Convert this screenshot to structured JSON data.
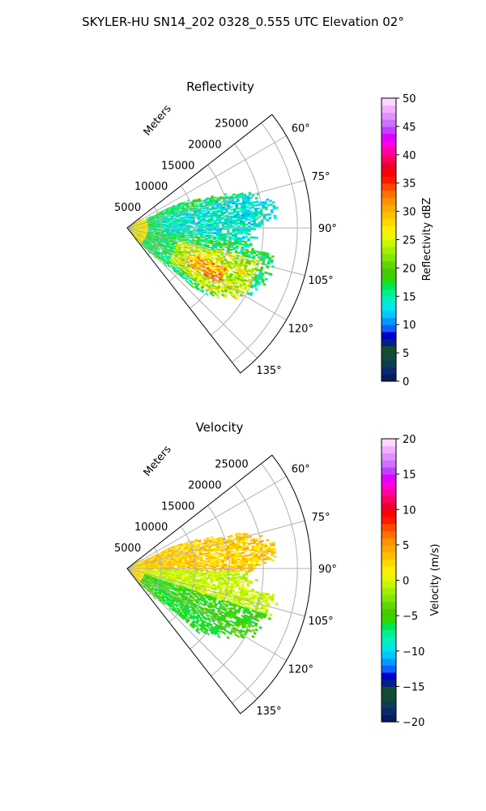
{
  "figure": {
    "title": "SKYLER-HU  SN14_202  0328_0.555 UTC Elevation 02°"
  },
  "chart_data": [
    {
      "type": "heatmap",
      "title": "Reflectivity",
      "radial_label": "Meters",
      "radial_ticks": [
        5000,
        10000,
        15000,
        20000,
        25000
      ],
      "radial_tick_labels": [
        "5000",
        "10000",
        "15000",
        "20000",
        "25000"
      ],
      "r_max": 27000,
      "theta_min_deg": 52,
      "theta_max_deg": 142,
      "theta_ticks": [
        60,
        75,
        90,
        105,
        120,
        135
      ],
      "theta_tick_labels": [
        "60°",
        "75°",
        "90°",
        "105°",
        "120°",
        "135°"
      ],
      "grid": true,
      "colorbar": {
        "label": "Reflectivity dBZ",
        "range": [
          0,
          50
        ],
        "ticks": [
          0,
          5,
          10,
          15,
          20,
          25,
          30,
          35,
          40,
          45,
          50
        ],
        "tick_labels": [
          "0",
          "5",
          "10",
          "15",
          "20",
          "25",
          "30",
          "35",
          "40",
          "45",
          "50"
        ],
        "colors": [
          "#0a1a5a",
          "#0b2a6e",
          "#0d3d55",
          "#0f4a3c",
          "#124f2c",
          "#0a1e8a",
          "#0000cc",
          "#1060ff",
          "#0099ff",
          "#00c8ff",
          "#00e6e6",
          "#00f0c0",
          "#00f090",
          "#00e650",
          "#30d800",
          "#4ac800",
          "#60d800",
          "#80e800",
          "#a0f000",
          "#c8f800",
          "#e8f800",
          "#ffee00",
          "#ffd800",
          "#ffc000",
          "#ffa800",
          "#ff9000",
          "#ff7000",
          "#ff4800",
          "#ff1800",
          "#ff0000",
          "#e80030",
          "#ff0060",
          "#ff00a0",
          "#ff00e0",
          "#e000ff",
          "#c040ff",
          "#d070ff",
          "#e090ff",
          "#f0b0ff",
          "#fad8ff"
        ],
        "note_units": "dBZ"
      },
      "data_summary": {
        "dominant_values": "15-25 dBZ",
        "max_observed": "about 35 dBZ near 115° at 10000-14000 m"
      }
    },
    {
      "type": "heatmap",
      "title": "Velocity",
      "radial_label": "Meters",
      "radial_ticks": [
        5000,
        10000,
        15000,
        20000,
        25000
      ],
      "radial_tick_labels": [
        "5000",
        "10000",
        "15000",
        "20000",
        "25000"
      ],
      "r_max": 27000,
      "theta_min_deg": 52,
      "theta_max_deg": 142,
      "theta_ticks": [
        60,
        75,
        90,
        105,
        120,
        135
      ],
      "theta_tick_labels": [
        "60°",
        "75°",
        "90°",
        "105°",
        "120°",
        "135°"
      ],
      "grid": true,
      "colorbar": {
        "label": "Velocity (m/s)",
        "range": [
          -20,
          20
        ],
        "ticks": [
          -20,
          -15,
          -10,
          -5,
          0,
          5,
          10,
          15,
          20
        ],
        "tick_labels": [
          "−20",
          "−15",
          "−10",
          "−5",
          "0",
          "5",
          "10",
          "15",
          "20"
        ],
        "colors": [
          "#0a1a5a",
          "#0b2a6e",
          "#0d3d55",
          "#0f4a3c",
          "#124f2c",
          "#0a1e8a",
          "#0000cc",
          "#1060ff",
          "#0099ff",
          "#00c8ff",
          "#00e6e6",
          "#00f0c0",
          "#00f090",
          "#00e650",
          "#30d800",
          "#4ac800",
          "#60d800",
          "#80e800",
          "#a0f000",
          "#c8f800",
          "#e8f800",
          "#ffee00",
          "#ffd800",
          "#ffc000",
          "#ffa800",
          "#ff9000",
          "#ff7000",
          "#ff4800",
          "#ff1800",
          "#ff0000",
          "#e80030",
          "#ff0060",
          "#ff00a0",
          "#ff00e0",
          "#e000ff",
          "#c040ff",
          "#d070ff",
          "#e090ff",
          "#f0b0ff",
          "#fad8ff"
        ]
      },
      "data_summary": {
        "dominant_values": "-8 to 2 m/s",
        "note": "positive (yellow) returns north of 90°, negative (green) returns south of 105°"
      }
    }
  ]
}
